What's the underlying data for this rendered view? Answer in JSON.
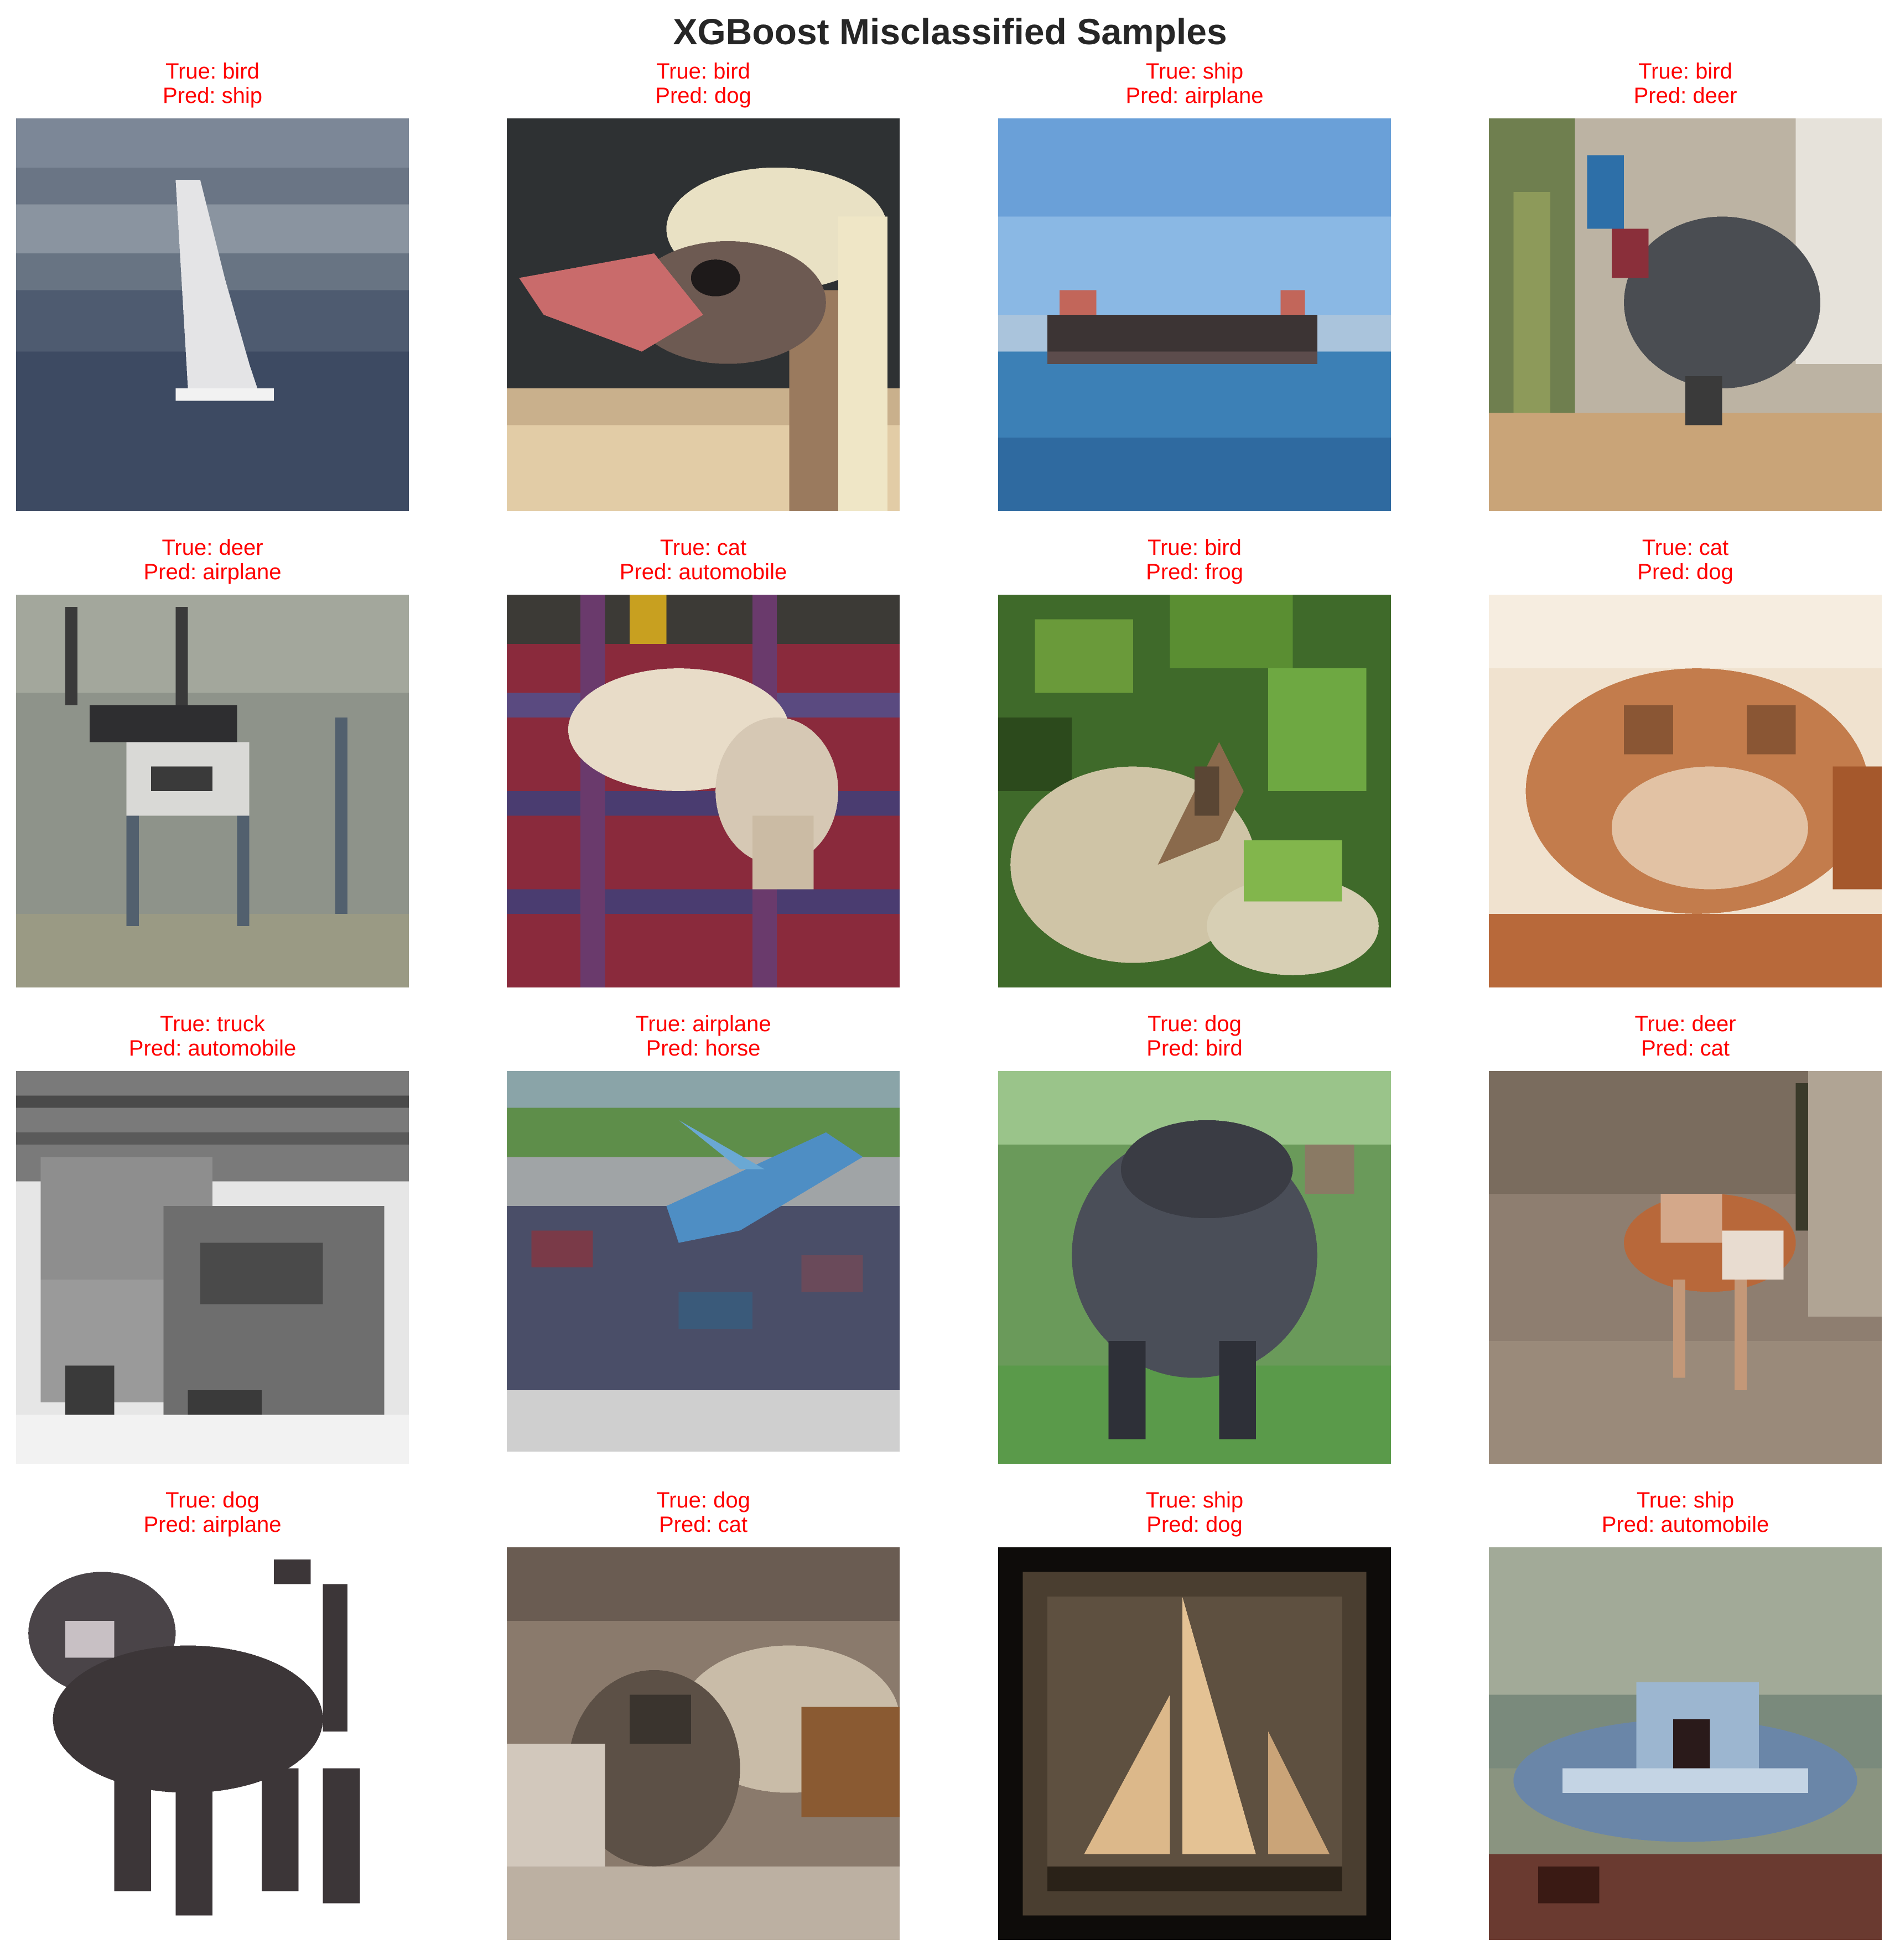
{
  "figure": {
    "title": "XGBoost Misclassified Samples"
  },
  "samples": [
    {
      "true_label": "True: bird",
      "pred_label": "Pred: ship",
      "subject": "sailboat"
    },
    {
      "true_label": "True: bird",
      "pred_label": "Pred: dog",
      "subject": "ostrich head"
    },
    {
      "true_label": "True: ship",
      "pred_label": "Pred: airplane",
      "subject": "cargo ship on water"
    },
    {
      "true_label": "True: bird",
      "pred_label": "Pred: deer",
      "subject": "cassowary"
    },
    {
      "true_label": "True: deer",
      "pred_label": "Pred: airplane",
      "subject": "antelope"
    },
    {
      "true_label": "True: cat",
      "pred_label": "Pred: automobile",
      "subject": "cat on red blanket"
    },
    {
      "true_label": "True: bird",
      "pred_label": "Pred: frog",
      "subject": "small bird among leaves"
    },
    {
      "true_label": "True: cat",
      "pred_label": "Pred: dog",
      "subject": "curled orange cat"
    },
    {
      "true_label": "True: truck",
      "pred_label": "Pred: automobile",
      "subject": "grayscale truck"
    },
    {
      "true_label": "True: airplane",
      "pred_label": "Pred: horse",
      "subject": "airplane over crowd"
    },
    {
      "true_label": "True: dog",
      "pred_label": "Pred: bird",
      "subject": "dark dog on grass"
    },
    {
      "true_label": "True: deer",
      "pred_label": "Pred: cat",
      "subject": "small deer"
    },
    {
      "true_label": "True: dog",
      "pred_label": "Pred: airplane",
      "subject": "black dog on white"
    },
    {
      "true_label": "True: dog",
      "pred_label": "Pred: cat",
      "subject": "dog close-up"
    },
    {
      "true_label": "True: ship",
      "pred_label": "Pred: dog",
      "subject": "sailing ship silhouette"
    },
    {
      "true_label": "True: ship",
      "pred_label": "Pred: automobile",
      "subject": "motor boat"
    }
  ]
}
